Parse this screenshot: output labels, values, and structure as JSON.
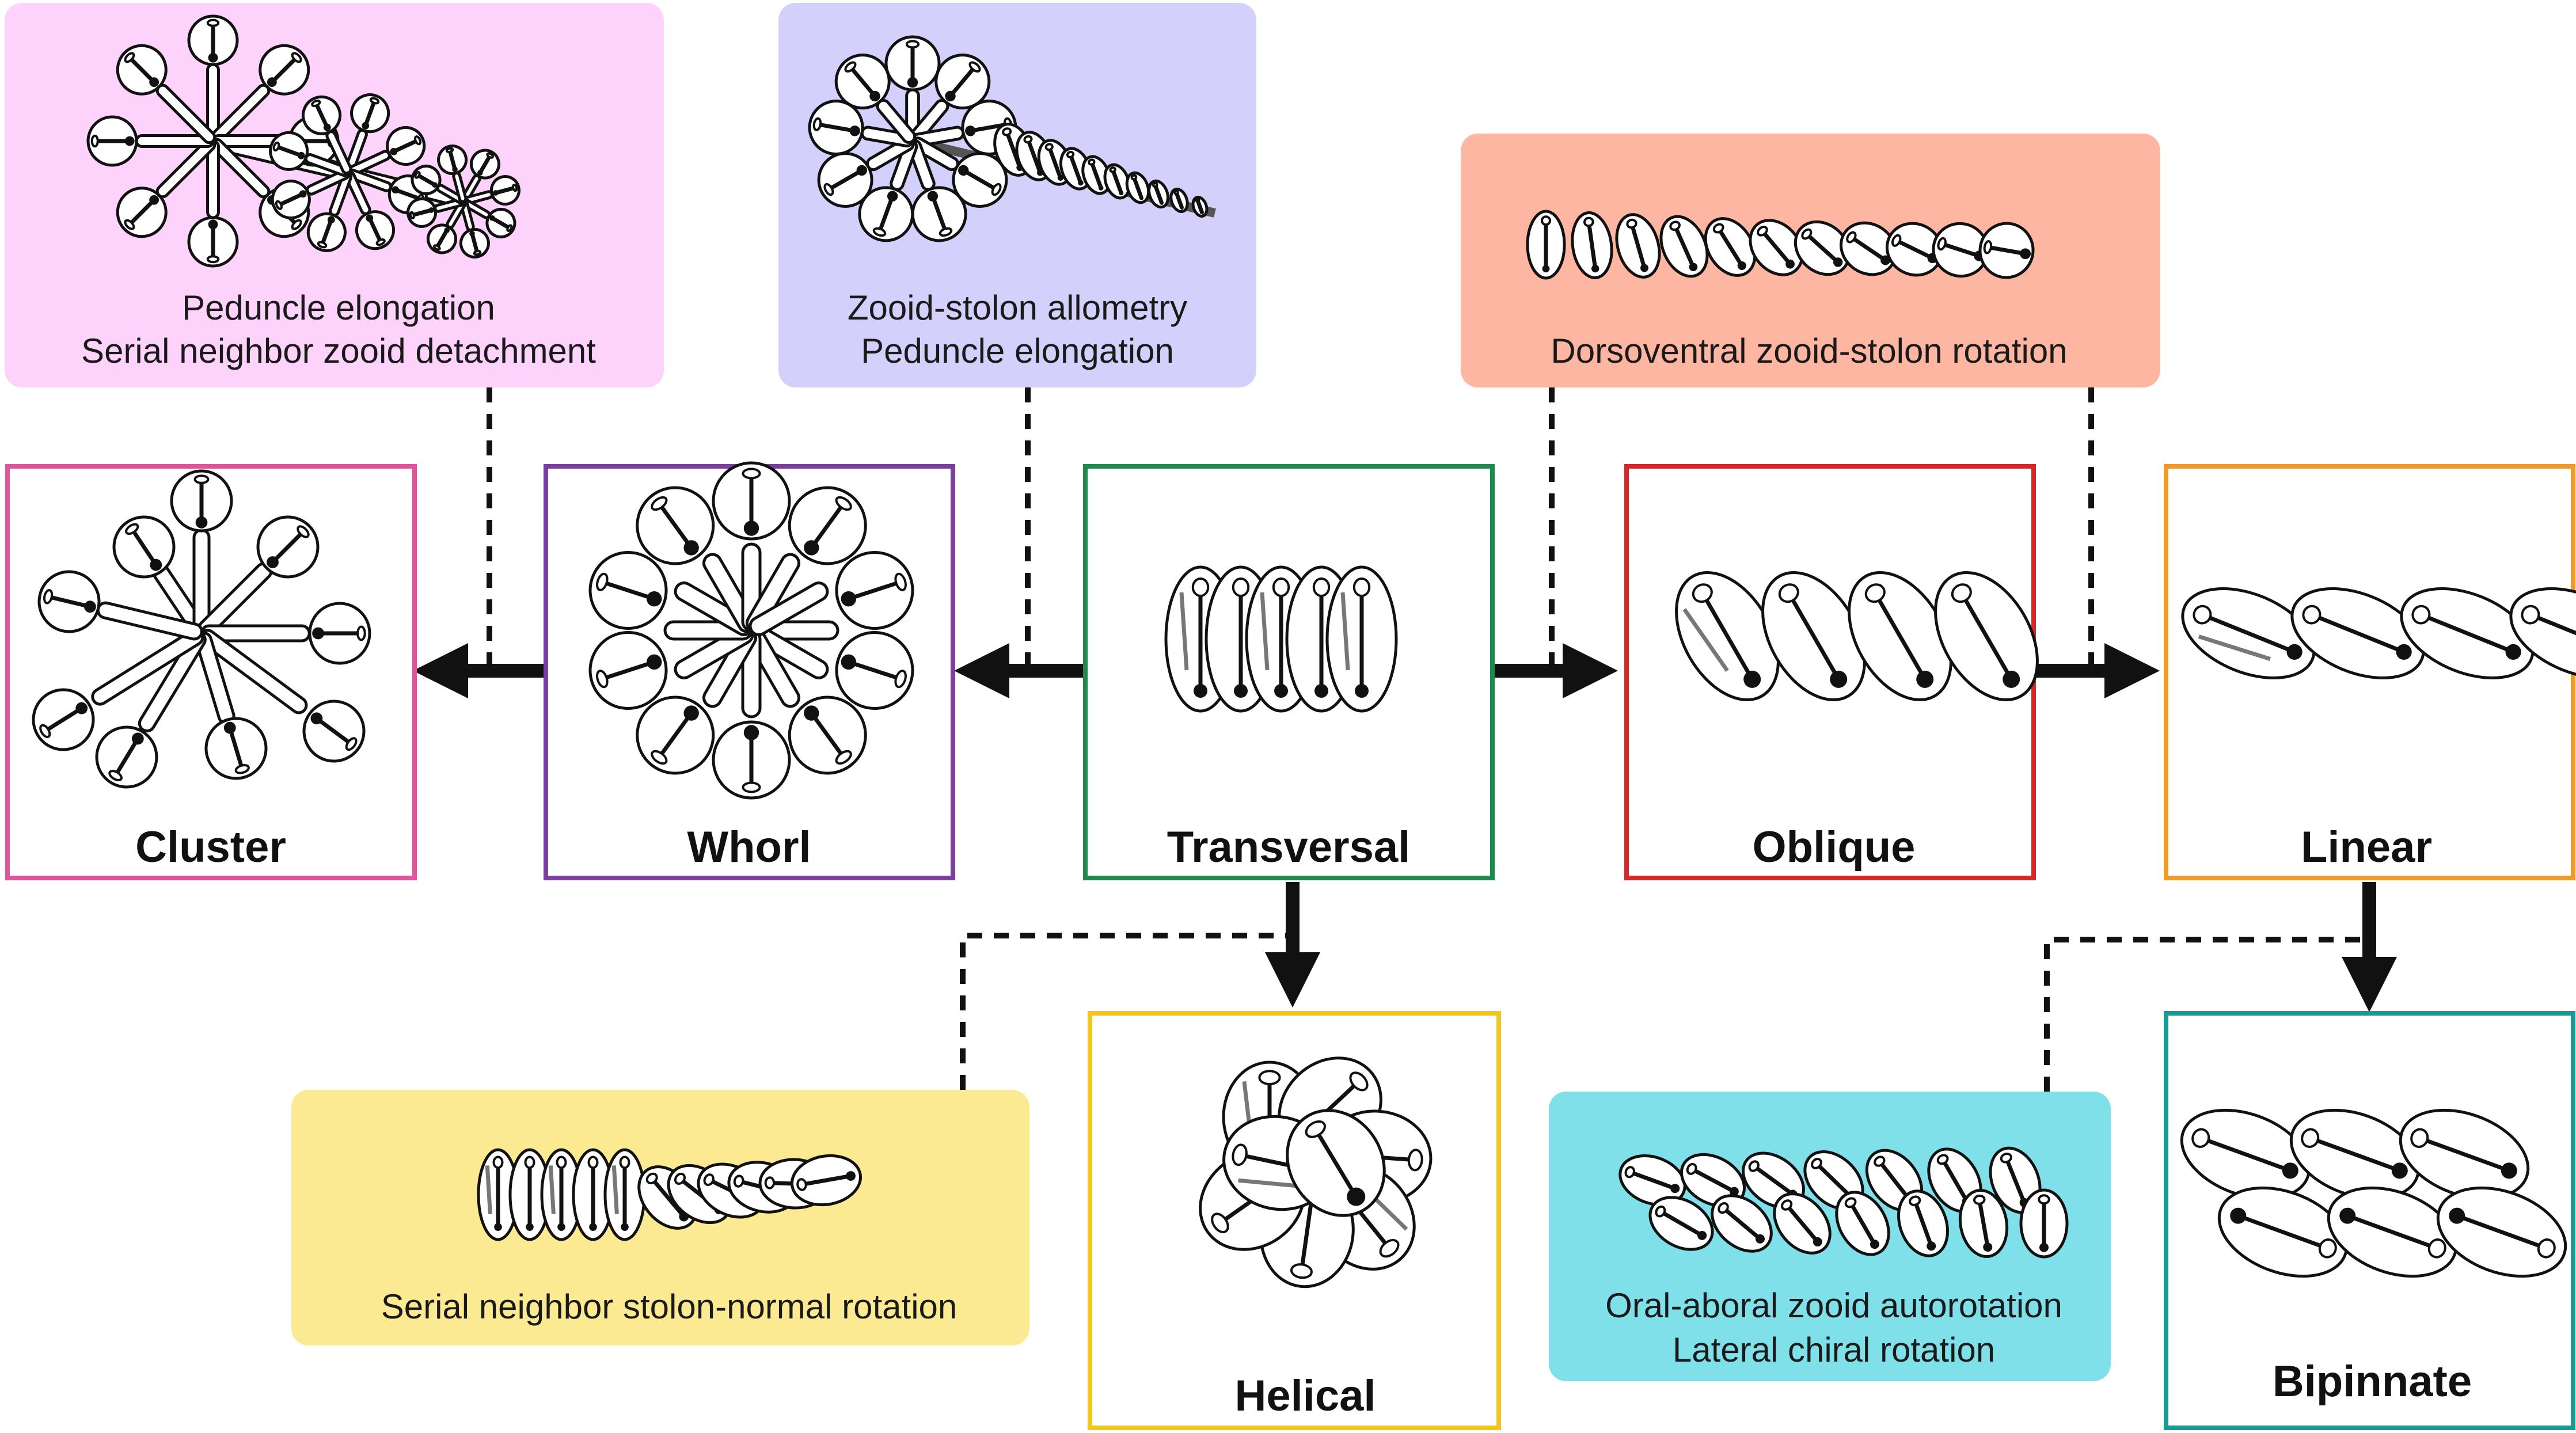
{
  "nodes": {
    "cluster": {
      "label": "Cluster",
      "color": "#e0549b"
    },
    "whorl": {
      "label": "Whorl",
      "color": "#7b3fa0"
    },
    "transversal": {
      "label": "Transversal",
      "color": "#1f8a4c"
    },
    "oblique": {
      "label": "Oblique",
      "color": "#d62828"
    },
    "linear": {
      "label": "Linear",
      "color": "#f09a2b"
    },
    "helical": {
      "label": "Helical",
      "color": "#f2c61d"
    },
    "bipinnate": {
      "label": "Bipinnate",
      "color": "#1a9a95"
    }
  },
  "notes": {
    "pink": {
      "line1": "Peduncle elongation",
      "line2": "Serial neighbor zooid detachment",
      "fill": "#fdd2fb"
    },
    "lavender": {
      "line1": "Zooid-stolon allometry",
      "line2": "Peduncle elongation",
      "fill": "#d3d0fb"
    },
    "salmon": {
      "line1": "Dorsoventral zooid-stolon rotation",
      "fill": "#fcb6a2"
    },
    "yellow": {
      "line1": "Serial neighbor stolon-normal rotation",
      "fill": "#fcea93"
    },
    "cyan": {
      "line1": "Oral-aboral zooid autorotation",
      "line2": "Lateral chiral rotation",
      "fill": "#7fe0ea"
    }
  }
}
